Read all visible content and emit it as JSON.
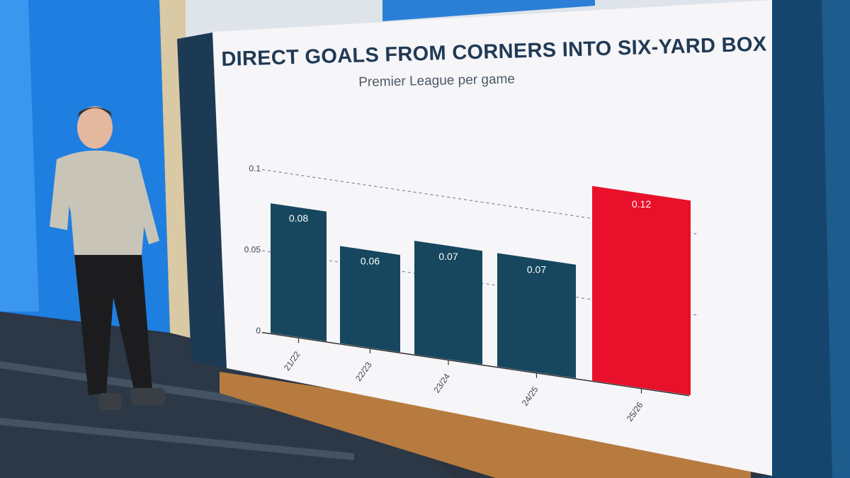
{
  "colors": {
    "bar_default": "#16475f",
    "bar_highlight": "#e8102a",
    "title": "#203a55",
    "screen_bg": "#f6f5f8"
  },
  "chart_data": {
    "type": "bar",
    "title": "DIRECT GOALS FROM CORNERS INTO SIX-YARD BOX",
    "subtitle": "Premier League per game",
    "categories": [
      "21/22",
      "22/23",
      "23/24",
      "24/25",
      "25/26"
    ],
    "values": [
      0.08,
      0.06,
      0.07,
      0.07,
      0.12
    ],
    "value_labels": [
      "0.08",
      "0.06",
      "0.07",
      "0.07",
      "0.12"
    ],
    "highlight_index": 4,
    "y_ticks": [
      0,
      0.05,
      0.1
    ],
    "y_tick_labels": [
      "0",
      "0.05",
      "0.1"
    ],
    "ylim": [
      0,
      0.13
    ],
    "grid": "dashed at 0.05 and 0.1",
    "xlabel": "",
    "ylabel": ""
  }
}
